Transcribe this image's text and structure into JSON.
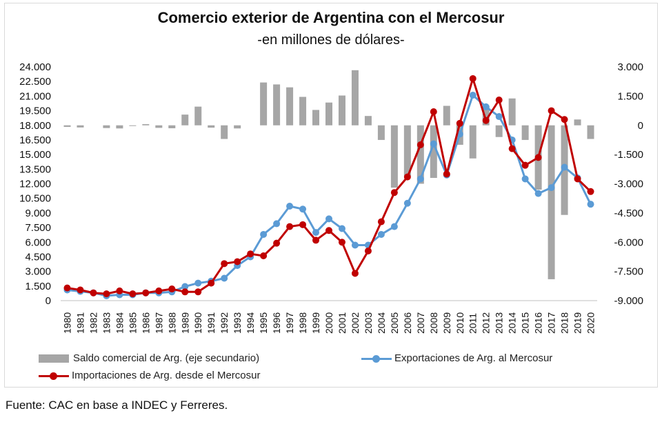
{
  "chart_data": {
    "type": "bar+line",
    "title": "Comercio exterior de Argentina con el Mercosur",
    "subtitle": "-en millones de dólares-",
    "categories": [
      "1980",
      "1981",
      "1982",
      "1983",
      "1984",
      "1985",
      "1986",
      "1987",
      "1988",
      "1989",
      "1990",
      "1991",
      "1992",
      "1993",
      "1994",
      "1995",
      "1996",
      "1997",
      "1998",
      "1999",
      "2000",
      "2001",
      "2002",
      "2003",
      "2004",
      "2005",
      "2006",
      "2007",
      "2008",
      "2009",
      "2010",
      "2011",
      "2012",
      "2013",
      "2014",
      "2015",
      "2016",
      "2017",
      "2018",
      "2019",
      "2020"
    ],
    "y_left": {
      "min": 0,
      "max": 24000,
      "ticks": [
        "0",
        "1.500",
        "3.000",
        "4.500",
        "6.000",
        "7.500",
        "9.000",
        "10.500",
        "12.000",
        "13.500",
        "15.000",
        "16.500",
        "18.000",
        "19.500",
        "21.000",
        "22.500",
        "24.000"
      ]
    },
    "y_right": {
      "min": -9000,
      "max": 3000,
      "ticks": [
        "-9.000",
        "-7.500",
        "-6.000",
        "-4.500",
        "-3.000",
        "-1.500",
        "0",
        "1.500",
        "3.000"
      ]
    },
    "series": [
      {
        "name": "Saldo comercial de Arg. (eje secundario)",
        "type": "bar",
        "axis": "right",
        "color": "#a6a6a6",
        "values": [
          -80,
          -110,
          0,
          -140,
          -160,
          -30,
          60,
          -130,
          -150,
          550,
          960,
          -120,
          -700,
          -160,
          0,
          2200,
          2100,
          1950,
          1460,
          790,
          1170,
          1530,
          2830,
          480,
          -750,
          -3200,
          -2600,
          -3000,
          -2700,
          1000,
          -1000,
          -1700,
          1000,
          -600,
          1380,
          -750,
          -3300,
          -7900,
          -4600,
          300,
          -700
        ]
      },
      {
        "name": "Exportaciones de Arg. al Mercosur",
        "type": "line",
        "axis": "left",
        "color": "#5b9bd5",
        "values": [
          1100,
          950,
          800,
          500,
          600,
          600,
          800,
          800,
          900,
          1450,
          1800,
          2000,
          2300,
          3600,
          4500,
          6800,
          7900,
          9700,
          9400,
          7000,
          8400,
          7400,
          5700,
          5700,
          6800,
          7600,
          10000,
          12500,
          16100,
          12900,
          17100,
          21100,
          19900,
          18900,
          16500,
          12500,
          11000,
          11600,
          13700,
          12600,
          9900
        ]
      },
      {
        "name": "Importaciones de Arg. desde el Mercosur",
        "type": "line",
        "axis": "left",
        "color": "#c00000",
        "values": [
          1300,
          1100,
          800,
          700,
          1000,
          700,
          800,
          1000,
          1200,
          900,
          900,
          1800,
          3800,
          4000,
          4800,
          4600,
          5900,
          7600,
          7800,
          6200,
          7200,
          6000,
          2800,
          5100,
          8100,
          11100,
          12700,
          16000,
          19400,
          13000,
          18200,
          22800,
          18500,
          20600,
          15600,
          13900,
          14700,
          19500,
          18600,
          12500,
          11200
        ]
      }
    ],
    "legend": [
      "Saldo comercial de Arg. (eje secundario)",
      "Exportaciones de Arg. al Mercosur",
      "Importaciones de Arg. desde el Mercosur"
    ],
    "legend_position": "bottom",
    "grid": false
  },
  "source": "Fuente: CAC en base a INDEC y Ferreres."
}
